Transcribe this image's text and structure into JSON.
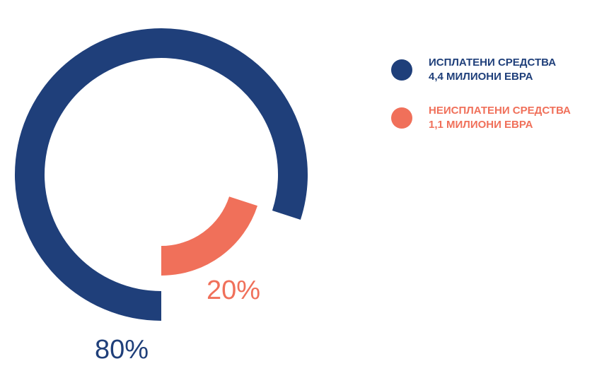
{
  "chart_data": {
    "type": "radial",
    "categories": [
      "ИСПЛАТЕНИ СРЕДСТВА",
      "НЕИСПЛАТЕНИ СРЕДСТВА"
    ],
    "subtexts": [
      "4,4 МИЛИОНИ ЕВРА",
      "1,1 МИЛИОНИ ЕВРА"
    ],
    "values": [
      80,
      20
    ],
    "value_labels": [
      "80%",
      "20%"
    ],
    "colors": [
      "#1f3f7a",
      "#f0705a"
    ]
  }
}
